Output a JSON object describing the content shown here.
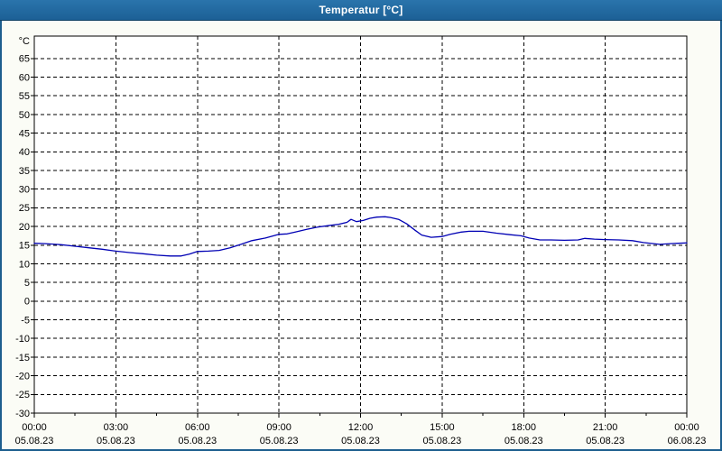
{
  "window": {
    "title": "Temperatur [°C]",
    "titlebar_color": "#1f69a2",
    "titlebar_text_color": "#ffffff",
    "border_color": "#1d5e8e",
    "background_color": "#fbfcf6",
    "plot_background_color": "#ffffff",
    "grid_color": "#000000",
    "axis_color": "#000000"
  },
  "chart_data": {
    "type": "line",
    "title": "Temperatur [°C]",
    "ylabel": "°C",
    "xlabel": "",
    "ylim": [
      -30,
      71
    ],
    "yticks_min": -30,
    "yticks_max": 65,
    "ytick_step": 5,
    "xlim_hours": [
      0,
      24
    ],
    "x_major_step_hours": 3,
    "x_minor_step_hours": 1.5,
    "grid": "dashed",
    "legend": "none",
    "x_ticks": [
      {
        "hour": 0,
        "time": "00:00",
        "date": "05.08.23"
      },
      {
        "hour": 3,
        "time": "03:00",
        "date": "05.08.23"
      },
      {
        "hour": 6,
        "time": "06:00",
        "date": "05.08.23"
      },
      {
        "hour": 9,
        "time": "09:00",
        "date": "05.08.23"
      },
      {
        "hour": 12,
        "time": "12:00",
        "date": "05.08.23"
      },
      {
        "hour": 15,
        "time": "15:00",
        "date": "05.08.23"
      },
      {
        "hour": 18,
        "time": "18:00",
        "date": "05.08.23"
      },
      {
        "hour": 21,
        "time": "21:00",
        "date": "05.08.23"
      },
      {
        "hour": 24,
        "time": "00:00",
        "date": "06.08.23"
      }
    ],
    "series": [
      {
        "name": "Temperatur",
        "color": "#0000b4",
        "points_hour_degc": [
          [
            0,
            15.5
          ],
          [
            0.4,
            15.4
          ],
          [
            0.8,
            15.2
          ],
          [
            1,
            15.1
          ],
          [
            1.5,
            14.7
          ],
          [
            2,
            14.3
          ],
          [
            2.5,
            13.9
          ],
          [
            3,
            13.4
          ],
          [
            3.5,
            13.0
          ],
          [
            4,
            12.7
          ],
          [
            4.5,
            12.3
          ],
          [
            5,
            12.1
          ],
          [
            5.4,
            12.1
          ],
          [
            5.7,
            12.6
          ],
          [
            6,
            13.3
          ],
          [
            6.4,
            13.4
          ],
          [
            6.8,
            13.6
          ],
          [
            7.2,
            14.3
          ],
          [
            7.6,
            15.2
          ],
          [
            8,
            16.2
          ],
          [
            8.5,
            16.9
          ],
          [
            9,
            17.9
          ],
          [
            9.3,
            18.0
          ],
          [
            9.6,
            18.5
          ],
          [
            10,
            19.2
          ],
          [
            10.4,
            19.8
          ],
          [
            10.8,
            20.2
          ],
          [
            11.2,
            20.6
          ],
          [
            11.5,
            21.1
          ],
          [
            11.65,
            21.9
          ],
          [
            11.85,
            21.3
          ],
          [
            12.1,
            21.6
          ],
          [
            12.35,
            22.2
          ],
          [
            12.6,
            22.5
          ],
          [
            12.9,
            22.6
          ],
          [
            13.1,
            22.4
          ],
          [
            13.4,
            21.9
          ],
          [
            13.7,
            20.7
          ],
          [
            14,
            19.0
          ],
          [
            14.25,
            17.7
          ],
          [
            14.6,
            17.1
          ],
          [
            15,
            17.3
          ],
          [
            15.3,
            17.9
          ],
          [
            15.7,
            18.5
          ],
          [
            16,
            18.7
          ],
          [
            16.5,
            18.7
          ],
          [
            17,
            18.2
          ],
          [
            17.5,
            17.8
          ],
          [
            17.9,
            17.5
          ],
          [
            18.2,
            16.9
          ],
          [
            18.6,
            16.4
          ],
          [
            19,
            16.4
          ],
          [
            19.5,
            16.3
          ],
          [
            20,
            16.4
          ],
          [
            20.25,
            16.8
          ],
          [
            20.6,
            16.6
          ],
          [
            21,
            16.5
          ],
          [
            21.5,
            16.4
          ],
          [
            22,
            16.2
          ],
          [
            22.4,
            15.7
          ],
          [
            23,
            15.2
          ],
          [
            23.4,
            15.4
          ],
          [
            23.7,
            15.5
          ],
          [
            24,
            15.6
          ]
        ]
      }
    ]
  }
}
